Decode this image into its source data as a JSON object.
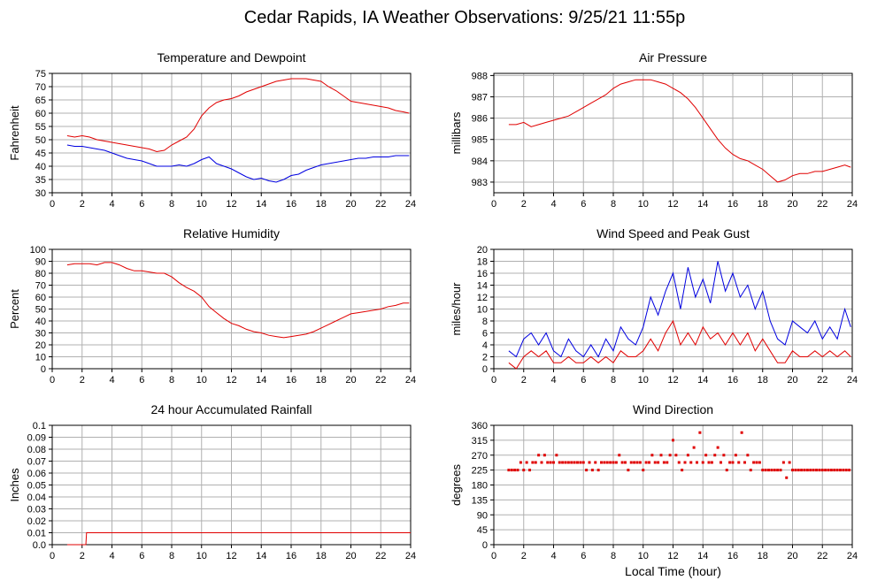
{
  "title": "Cedar Rapids, IA Weather Observations: 9/25/21 11:55p",
  "colors": {
    "red": "#e00000",
    "blue": "#0000e0",
    "grid": "#b0b0b0"
  },
  "chart_data": [
    {
      "id": "temperature",
      "type": "line",
      "title": "Temperature and Dewpoint",
      "ylabel": "Fahrenheit",
      "xlabel": "",
      "xlim": [
        0,
        24
      ],
      "ylim": [
        30,
        75
      ],
      "xticks": [
        0,
        2,
        4,
        6,
        8,
        10,
        12,
        14,
        16,
        18,
        20,
        22,
        24
      ],
      "yticks": [
        30,
        35,
        40,
        45,
        50,
        55,
        60,
        65,
        70,
        75
      ],
      "grid": true,
      "series": [
        {
          "color": "#e00000",
          "x": [
            1.0,
            1.5,
            2.0,
            2.5,
            3.0,
            3.5,
            4.0,
            4.5,
            5.0,
            5.5,
            6.0,
            6.5,
            7.0,
            7.5,
            8.0,
            8.5,
            9.0,
            9.5,
            10.0,
            10.5,
            11.0,
            11.5,
            12.0,
            12.5,
            13.0,
            13.5,
            14.0,
            14.5,
            15.0,
            15.5,
            16.0,
            16.5,
            17.0,
            17.5,
            18.0,
            18.5,
            19.0,
            19.5,
            20.0,
            20.5,
            21.0,
            21.5,
            22.0,
            22.5,
            23.0,
            23.5,
            23.9
          ],
          "y": [
            51.5,
            51,
            51.5,
            51,
            50,
            49.5,
            49,
            48.5,
            48,
            47.5,
            47,
            46.5,
            45.5,
            46,
            48,
            49.5,
            51,
            54,
            59,
            62,
            64,
            65,
            65.5,
            66.5,
            68,
            69,
            70,
            71,
            72,
            72.5,
            73,
            73,
            73,
            72.5,
            72,
            70,
            68.5,
            66.5,
            64.5,
            64,
            63.5,
            63,
            62.5,
            62,
            61,
            60.5,
            60
          ]
        },
        {
          "color": "#0000e0",
          "x": [
            1.0,
            1.5,
            2.0,
            2.5,
            3.0,
            3.5,
            4.0,
            4.5,
            5.0,
            5.5,
            6.0,
            6.5,
            7.0,
            7.5,
            8.0,
            8.5,
            9.0,
            9.5,
            10.0,
            10.5,
            11.0,
            11.5,
            12.0,
            12.5,
            13.0,
            13.5,
            14.0,
            14.5,
            15.0,
            15.5,
            16.0,
            16.5,
            17.0,
            17.5,
            18.0,
            18.5,
            19.0,
            19.5,
            20.0,
            20.5,
            21.0,
            21.5,
            22.0,
            22.5,
            23.0,
            23.5,
            23.9
          ],
          "y": [
            48,
            47.5,
            47.5,
            47,
            46.5,
            46,
            45,
            44,
            43,
            42.5,
            42,
            41,
            40,
            40,
            40,
            40.5,
            40,
            41,
            42.5,
            43.5,
            41,
            40,
            39,
            37.5,
            36,
            35,
            35.5,
            34.5,
            34,
            35,
            36.5,
            37,
            38.5,
            39.5,
            40.5,
            41,
            41.5,
            42,
            42.5,
            43,
            43,
            43.5,
            43.5,
            43.5,
            44,
            44,
            44
          ]
        }
      ]
    },
    {
      "id": "pressure",
      "type": "line",
      "title": "Air Pressure",
      "ylabel": "millibars",
      "xlabel": "",
      "xlim": [
        0,
        24
      ],
      "ylim": [
        982.5,
        988.1
      ],
      "xticks": [
        0,
        2,
        4,
        6,
        8,
        10,
        12,
        14,
        16,
        18,
        20,
        22,
        24
      ],
      "yticks": [
        983,
        984,
        985,
        986,
        987,
        988
      ],
      "grid": true,
      "series": [
        {
          "color": "#e00000",
          "x": [
            1.0,
            1.5,
            2.0,
            2.5,
            3.0,
            3.5,
            4.0,
            4.5,
            5.0,
            5.5,
            6.0,
            6.5,
            7.0,
            7.5,
            8.0,
            8.5,
            9.0,
            9.5,
            10.0,
            10.5,
            11.0,
            11.5,
            12.0,
            12.5,
            13.0,
            13.5,
            14.0,
            14.5,
            15.0,
            15.5,
            16.0,
            16.5,
            17.0,
            17.5,
            18.0,
            18.5,
            19.0,
            19.5,
            20.0,
            20.5,
            21.0,
            21.5,
            22.0,
            22.5,
            23.0,
            23.5,
            23.9
          ],
          "y": [
            985.7,
            985.7,
            985.8,
            985.6,
            985.7,
            985.8,
            985.9,
            986.0,
            986.1,
            986.3,
            986.5,
            986.7,
            986.9,
            987.1,
            987.4,
            987.6,
            987.7,
            987.8,
            987.8,
            987.8,
            987.7,
            987.6,
            987.4,
            987.2,
            986.9,
            986.5,
            986.0,
            985.5,
            985.0,
            984.6,
            984.3,
            984.1,
            984.0,
            983.8,
            983.6,
            983.3,
            983.0,
            983.1,
            983.3,
            983.4,
            983.4,
            983.5,
            983.5,
            983.6,
            983.7,
            983.8,
            983.7
          ]
        }
      ]
    },
    {
      "id": "humidity",
      "type": "line",
      "title": "Relative Humidity",
      "ylabel": "Percent",
      "xlabel": "",
      "xlim": [
        0,
        24
      ],
      "ylim": [
        0,
        100
      ],
      "xticks": [
        0,
        2,
        4,
        6,
        8,
        10,
        12,
        14,
        16,
        18,
        20,
        22,
        24
      ],
      "yticks": [
        0,
        10,
        20,
        30,
        40,
        50,
        60,
        70,
        80,
        90,
        100
      ],
      "grid": true,
      "series": [
        {
          "color": "#e00000",
          "x": [
            1.0,
            1.5,
            2.0,
            2.5,
            3.0,
            3.5,
            4.0,
            4.5,
            5.0,
            5.5,
            6.0,
            6.5,
            7.0,
            7.5,
            8.0,
            8.5,
            9.0,
            9.5,
            10.0,
            10.5,
            11.0,
            11.5,
            12.0,
            12.5,
            13.0,
            13.5,
            14.0,
            14.5,
            15.0,
            15.5,
            16.0,
            16.5,
            17.0,
            17.5,
            18.0,
            18.5,
            19.0,
            19.5,
            20.0,
            20.5,
            21.0,
            21.5,
            22.0,
            22.5,
            23.0,
            23.5,
            23.9
          ],
          "y": [
            87,
            88,
            88,
            88,
            87,
            89,
            89,
            87,
            84,
            82,
            82,
            81,
            80,
            80,
            77,
            72,
            68,
            65,
            60,
            52,
            47,
            42,
            38,
            36,
            33,
            31,
            30,
            28,
            27,
            26,
            27,
            28,
            29,
            31,
            34,
            37,
            40,
            43,
            46,
            47,
            48,
            49,
            50,
            52,
            53,
            55,
            55
          ]
        }
      ]
    },
    {
      "id": "wind-speed",
      "type": "line",
      "title": "Wind Speed and Peak Gust",
      "ylabel": "miles/hour",
      "xlabel": "",
      "xlim": [
        0,
        24
      ],
      "ylim": [
        0,
        20
      ],
      "xticks": [
        0,
        2,
        4,
        6,
        8,
        10,
        12,
        14,
        16,
        18,
        20,
        22,
        24
      ],
      "yticks": [
        0,
        2,
        4,
        6,
        8,
        10,
        12,
        14,
        16,
        18,
        20
      ],
      "grid": true,
      "series": [
        {
          "color": "#0000e0",
          "x": [
            1.0,
            1.5,
            2.0,
            2.5,
            3.0,
            3.5,
            4.0,
            4.5,
            5.0,
            5.5,
            6.0,
            6.5,
            7.0,
            7.5,
            8.0,
            8.5,
            9.0,
            9.5,
            10.0,
            10.5,
            11.0,
            11.5,
            12.0,
            12.5,
            13.0,
            13.5,
            14.0,
            14.5,
            15.0,
            15.5,
            16.0,
            16.5,
            17.0,
            17.5,
            18.0,
            18.5,
            19.0,
            19.5,
            20.0,
            20.5,
            21.0,
            21.5,
            22.0,
            22.5,
            23.0,
            23.5,
            23.9
          ],
          "y": [
            3,
            2,
            5,
            6,
            4,
            6,
            3,
            2,
            5,
            3,
            2,
            4,
            2,
            5,
            3,
            7,
            5,
            4,
            7,
            12,
            9,
            13,
            16,
            10,
            17,
            12,
            15,
            11,
            18,
            13,
            16,
            12,
            14,
            10,
            13,
            8,
            5,
            4,
            8,
            7,
            6,
            8,
            5,
            7,
            5,
            10,
            7
          ]
        },
        {
          "color": "#e00000",
          "x": [
            1.0,
            1.5,
            2.0,
            2.5,
            3.0,
            3.5,
            4.0,
            4.5,
            5.0,
            5.5,
            6.0,
            6.5,
            7.0,
            7.5,
            8.0,
            8.5,
            9.0,
            9.5,
            10.0,
            10.5,
            11.0,
            11.5,
            12.0,
            12.5,
            13.0,
            13.5,
            14.0,
            14.5,
            15.0,
            15.5,
            16.0,
            16.5,
            17.0,
            17.5,
            18.0,
            18.5,
            19.0,
            19.5,
            20.0,
            20.5,
            21.0,
            21.5,
            22.0,
            22.5,
            23.0,
            23.5,
            23.9
          ],
          "y": [
            1,
            0,
            2,
            3,
            2,
            3,
            1,
            1,
            2,
            1,
            1,
            2,
            1,
            2,
            1,
            3,
            2,
            2,
            3,
            5,
            3,
            6,
            8,
            4,
            6,
            4,
            7,
            5,
            6,
            4,
            6,
            4,
            6,
            3,
            5,
            3,
            1,
            1,
            3,
            2,
            2,
            3,
            2,
            3,
            2,
            3,
            2
          ]
        }
      ]
    },
    {
      "id": "rainfall",
      "type": "line",
      "title": "24 hour Accumulated Rainfall",
      "ylabel": "Inches",
      "xlabel": "",
      "xlim": [
        0,
        24
      ],
      "ylim": [
        0,
        0.1
      ],
      "xticks": [
        0,
        2,
        4,
        6,
        8,
        10,
        12,
        14,
        16,
        18,
        20,
        22,
        24
      ],
      "yticks": [
        0.0,
        0.01,
        0.02,
        0.03,
        0.04,
        0.05,
        0.06,
        0.07,
        0.08,
        0.09,
        0.1
      ],
      "ytick_labels": [
        "0.0",
        "0.01",
        "0.02",
        "0.03",
        "0.04",
        "0.05",
        "0.06",
        "0.07",
        "0.08",
        "0.09",
        "0.1"
      ],
      "grid": true,
      "series": [
        {
          "color": "#e00000",
          "x": [
            1.0,
            2.25,
            2.3,
            24.0
          ],
          "y": [
            0,
            0,
            0.01,
            0.01
          ]
        }
      ]
    },
    {
      "id": "wind-direction",
      "type": "scatter",
      "title": "Wind Direction",
      "ylabel": "degrees",
      "xlabel": "Local Time (hour)",
      "xlim": [
        0,
        24
      ],
      "ylim": [
        0,
        360
      ],
      "xticks": [
        0,
        2,
        4,
        6,
        8,
        10,
        12,
        14,
        16,
        18,
        20,
        22,
        24
      ],
      "yticks": [
        0,
        45,
        90,
        135,
        180,
        225,
        270,
        315,
        360
      ],
      "grid": true,
      "series": [
        {
          "color": "#e00000",
          "x": [
            1.0,
            1.2,
            1.4,
            1.6,
            1.8,
            2.0,
            2.2,
            2.4,
            2.6,
            2.8,
            3.0,
            3.2,
            3.4,
            3.6,
            3.8,
            4.0,
            4.2,
            4.4,
            4.6,
            4.8,
            5.0,
            5.2,
            5.4,
            5.6,
            5.8,
            6.0,
            6.2,
            6.4,
            6.6,
            6.8,
            7.0,
            7.2,
            7.4,
            7.6,
            7.8,
            8.0,
            8.2,
            8.4,
            8.6,
            8.8,
            9.0,
            9.2,
            9.4,
            9.6,
            9.8,
            10.0,
            10.2,
            10.4,
            10.6,
            10.8,
            11.0,
            11.2,
            11.4,
            11.6,
            11.8,
            12.0,
            12.2,
            12.4,
            12.6,
            12.8,
            13.0,
            13.2,
            13.4,
            13.6,
            13.8,
            14.0,
            14.2,
            14.4,
            14.6,
            14.8,
            15.0,
            15.2,
            15.4,
            15.6,
            15.8,
            16.0,
            16.2,
            16.4,
            16.6,
            16.8,
            17.0,
            17.2,
            17.4,
            17.6,
            17.8,
            18.0,
            18.2,
            18.4,
            18.6,
            18.8,
            19.0,
            19.2,
            19.4,
            19.6,
            19.8,
            20.0,
            20.2,
            20.4,
            20.6,
            20.8,
            21.0,
            21.2,
            21.4,
            21.6,
            21.8,
            22.0,
            22.2,
            22.4,
            22.6,
            22.8,
            23.0,
            23.2,
            23.4,
            23.6,
            23.8
          ],
          "y": [
            225,
            225,
            225,
            225,
            248,
            225,
            248,
            225,
            248,
            248,
            270,
            248,
            270,
            248,
            248,
            248,
            270,
            248,
            248,
            248,
            248,
            248,
            248,
            248,
            248,
            248,
            225,
            248,
            225,
            248,
            225,
            248,
            248,
            248,
            248,
            248,
            248,
            270,
            248,
            248,
            225,
            248,
            248,
            248,
            248,
            225,
            248,
            248,
            270,
            248,
            248,
            270,
            248,
            248,
            270,
            315,
            270,
            248,
            225,
            248,
            270,
            248,
            293,
            248,
            338,
            248,
            270,
            248,
            248,
            270,
            293,
            248,
            270,
            225,
            248,
            248,
            270,
            248,
            338,
            248,
            270,
            225,
            248,
            248,
            248,
            225,
            225,
            225,
            225,
            225,
            225,
            225,
            248,
            202,
            248,
            225,
            225,
            225,
            225,
            225,
            225,
            225,
            225,
            225,
            225,
            225,
            225,
            225,
            225,
            225,
            225,
            225,
            225,
            225,
            225
          ]
        }
      ]
    }
  ]
}
